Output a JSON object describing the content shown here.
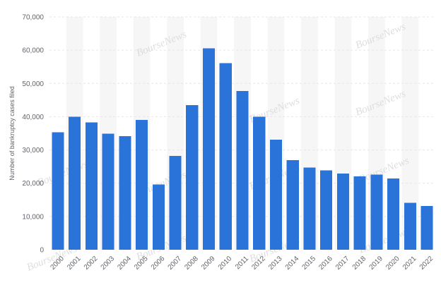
{
  "chart_data": {
    "type": "bar",
    "title": "",
    "xlabel": "",
    "ylabel": "Number of bankruptcy cases filed",
    "categories": [
      "2000",
      "2001",
      "2002",
      "2003",
      "2004",
      "2005",
      "2006",
      "2007",
      "2008",
      "2009",
      "2010",
      "2011",
      "2012",
      "2013",
      "2014",
      "2015",
      "2016",
      "2017",
      "2018",
      "2019",
      "2020",
      "2021",
      "2022"
    ],
    "values": [
      35300,
      40000,
      38300,
      34900,
      34200,
      39000,
      19600,
      28200,
      43500,
      60600,
      56100,
      47700,
      40000,
      33100,
      26900,
      24700,
      23900,
      22900,
      22100,
      22600,
      21400,
      14100,
      13100
    ],
    "ylim": [
      0,
      70000
    ],
    "yticks": [
      0,
      10000,
      20000,
      30000,
      40000,
      50000,
      60000,
      70000
    ],
    "ytick_labels": [
      "0",
      "10,000",
      "20,000",
      "30,000",
      "40,000",
      "50,000",
      "60,000",
      "70,000"
    ],
    "grid": true,
    "bar_color": "#2a73d9",
    "alternating_band_color": "#f6f6f6"
  },
  "watermark": {
    "text": "BourseNews"
  }
}
